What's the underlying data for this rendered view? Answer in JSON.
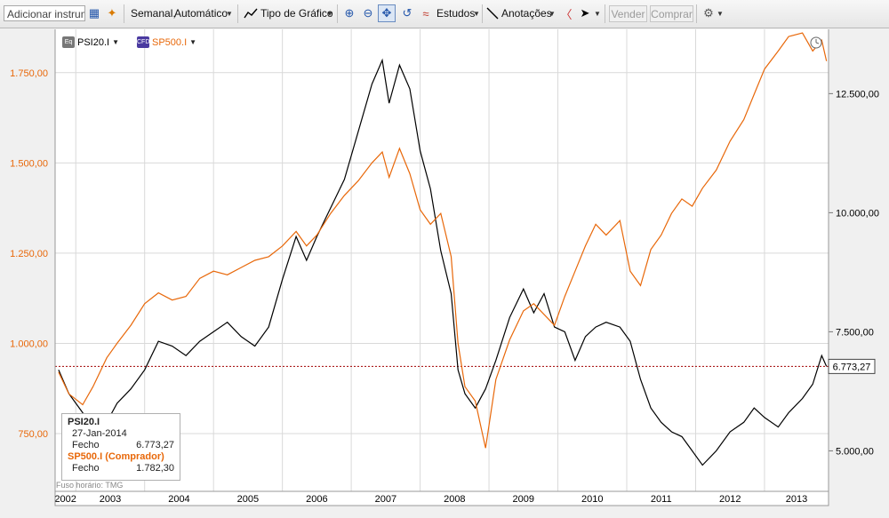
{
  "toolbar": {
    "instrument_input": "Adicionar instrume",
    "period": "Semanal,",
    "scale": "Automático",
    "chart_type": "Tipo de Gráfico",
    "studies": "Estudos",
    "annotations": "Anotações",
    "sell": "Vender",
    "buy": "Comprar"
  },
  "legend": [
    {
      "icon": "Eq",
      "name": "PSI20.I",
      "color": "#000000"
    },
    {
      "icon": "CFD",
      "name": "SP500.I",
      "color": "#e8680a"
    }
  ],
  "infobox": {
    "title": "PSI20.I",
    "date": "27-Jan-2014",
    "label": "Fecho",
    "value": "6.773,27",
    "title2": "SP500.I (Comprador)",
    "label2": "Fecho",
    "value2": "1.782,30"
  },
  "timezone": "Fuso horário: TMG",
  "last_value_label": "6.773,27",
  "colors": {
    "psi": "#000000",
    "sp": "#e8680a",
    "refline": "#a00000",
    "grid": "#d9d9d9"
  },
  "chart_data": {
    "type": "line",
    "x_labels": [
      "2002",
      "2003",
      "2004",
      "2005",
      "2006",
      "2007",
      "2008",
      "2009",
      "2010",
      "2011",
      "2012",
      "2013"
    ],
    "left_axis": {
      "ticks": [
        750,
        1000,
        1250,
        1500,
        1750
      ],
      "tick_labels": [
        "750,00",
        "1.000,00",
        "1.250,00",
        "1.500,00",
        "1.750,00"
      ],
      "range": [
        590,
        1870
      ]
    },
    "right_axis": {
      "ticks": [
        5000,
        7500,
        10000,
        12500
      ],
      "tick_labels": [
        "5.000,00",
        "7.500,00",
        "10.000,00",
        "12.500,00"
      ],
      "range": [
        4150,
        13850
      ]
    },
    "reference_line": 6773,
    "series": [
      {
        "name": "PSI20.I",
        "axis": "right",
        "points": [
          [
            2002.75,
            6700
          ],
          [
            2002.9,
            6200
          ],
          [
            2003.1,
            5800
          ],
          [
            2003.25,
            5400
          ],
          [
            2003.45,
            5600
          ],
          [
            2003.6,
            6000
          ],
          [
            2003.8,
            6300
          ],
          [
            2004.0,
            6700
          ],
          [
            2004.2,
            7300
          ],
          [
            2004.4,
            7200
          ],
          [
            2004.6,
            7000
          ],
          [
            2004.8,
            7300
          ],
          [
            2005.0,
            7500
          ],
          [
            2005.2,
            7700
          ],
          [
            2005.4,
            7400
          ],
          [
            2005.6,
            7200
          ],
          [
            2005.8,
            7600
          ],
          [
            2006.0,
            8600
          ],
          [
            2006.2,
            9500
          ],
          [
            2006.35,
            9000
          ],
          [
            2006.5,
            9500
          ],
          [
            2006.7,
            10100
          ],
          [
            2006.9,
            10700
          ],
          [
            2007.1,
            11700
          ],
          [
            2007.3,
            12700
          ],
          [
            2007.45,
            13200
          ],
          [
            2007.55,
            12300
          ],
          [
            2007.7,
            13100
          ],
          [
            2007.85,
            12600
          ],
          [
            2008.0,
            11300
          ],
          [
            2008.15,
            10500
          ],
          [
            2008.3,
            9200
          ],
          [
            2008.45,
            8300
          ],
          [
            2008.55,
            6700
          ],
          [
            2008.65,
            6200
          ],
          [
            2008.8,
            5900
          ],
          [
            2008.95,
            6300
          ],
          [
            2009.1,
            6900
          ],
          [
            2009.3,
            7800
          ],
          [
            2009.5,
            8400
          ],
          [
            2009.65,
            7900
          ],
          [
            2009.8,
            8300
          ],
          [
            2009.95,
            7600
          ],
          [
            2010.1,
            7500
          ],
          [
            2010.25,
            6900
          ],
          [
            2010.4,
            7400
          ],
          [
            2010.55,
            7600
          ],
          [
            2010.7,
            7700
          ],
          [
            2010.9,
            7600
          ],
          [
            2011.05,
            7300
          ],
          [
            2011.2,
            6500
          ],
          [
            2011.35,
            5900
          ],
          [
            2011.5,
            5600
          ],
          [
            2011.65,
            5400
          ],
          [
            2011.8,
            5300
          ],
          [
            2011.95,
            5000
          ],
          [
            2012.1,
            4700
          ],
          [
            2012.3,
            5000
          ],
          [
            2012.5,
            5400
          ],
          [
            2012.7,
            5600
          ],
          [
            2012.85,
            5900
          ],
          [
            2013.0,
            5700
          ],
          [
            2013.2,
            5500
          ],
          [
            2013.35,
            5800
          ],
          [
            2013.55,
            6100
          ],
          [
            2013.7,
            6400
          ],
          [
            2013.83,
            7000
          ],
          [
            2013.9,
            6773
          ]
        ]
      },
      {
        "name": "SP500.I",
        "axis": "left",
        "points": [
          [
            2002.75,
            920
          ],
          [
            2002.9,
            860
          ],
          [
            2003.1,
            830
          ],
          [
            2003.25,
            880
          ],
          [
            2003.45,
            960
          ],
          [
            2003.6,
            1000
          ],
          [
            2003.8,
            1050
          ],
          [
            2004.0,
            1110
          ],
          [
            2004.2,
            1140
          ],
          [
            2004.4,
            1120
          ],
          [
            2004.6,
            1130
          ],
          [
            2004.8,
            1180
          ],
          [
            2005.0,
            1200
          ],
          [
            2005.2,
            1190
          ],
          [
            2005.4,
            1210
          ],
          [
            2005.6,
            1230
          ],
          [
            2005.8,
            1240
          ],
          [
            2006.0,
            1270
          ],
          [
            2006.2,
            1310
          ],
          [
            2006.35,
            1270
          ],
          [
            2006.5,
            1300
          ],
          [
            2006.7,
            1360
          ],
          [
            2006.9,
            1410
          ],
          [
            2007.1,
            1450
          ],
          [
            2007.3,
            1500
          ],
          [
            2007.45,
            1530
          ],
          [
            2007.55,
            1460
          ],
          [
            2007.7,
            1540
          ],
          [
            2007.85,
            1470
          ],
          [
            2008.0,
            1370
          ],
          [
            2008.15,
            1330
          ],
          [
            2008.3,
            1360
          ],
          [
            2008.45,
            1240
          ],
          [
            2008.55,
            1000
          ],
          [
            2008.65,
            880
          ],
          [
            2008.8,
            840
          ],
          [
            2008.95,
            710
          ],
          [
            2009.1,
            900
          ],
          [
            2009.3,
            1010
          ],
          [
            2009.5,
            1090
          ],
          [
            2009.65,
            1110
          ],
          [
            2009.8,
            1080
          ],
          [
            2009.95,
            1050
          ],
          [
            2010.1,
            1130
          ],
          [
            2010.25,
            1200
          ],
          [
            2010.4,
            1270
          ],
          [
            2010.55,
            1330
          ],
          [
            2010.7,
            1300
          ],
          [
            2010.9,
            1340
          ],
          [
            2011.05,
            1200
          ],
          [
            2011.2,
            1160
          ],
          [
            2011.35,
            1260
          ],
          [
            2011.5,
            1300
          ],
          [
            2011.65,
            1360
          ],
          [
            2011.8,
            1400
          ],
          [
            2011.95,
            1380
          ],
          [
            2012.1,
            1430
          ],
          [
            2012.3,
            1480
          ],
          [
            2012.5,
            1560
          ],
          [
            2012.7,
            1620
          ],
          [
            2012.85,
            1690
          ],
          [
            2013.0,
            1760
          ],
          [
            2013.2,
            1810
          ],
          [
            2013.35,
            1850
          ],
          [
            2013.55,
            1860
          ],
          [
            2013.7,
            1810
          ],
          [
            2013.83,
            1840
          ],
          [
            2013.9,
            1782
          ]
        ]
      }
    ]
  }
}
